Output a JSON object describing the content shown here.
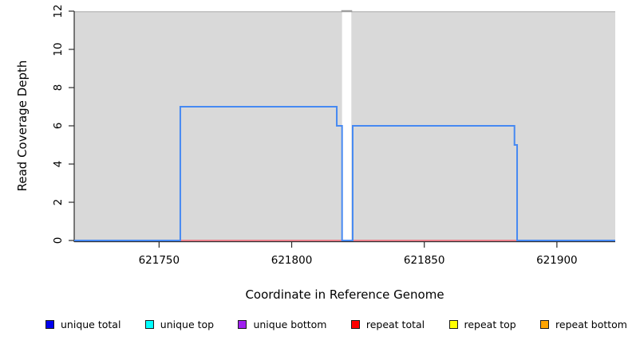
{
  "chart_data": {
    "type": "line",
    "subtype": "step-coverage",
    "title": "",
    "xlabel": "Coordinate in Reference Genome",
    "ylabel": "Read Coverage Depth",
    "xlim": [
      621718,
      621922
    ],
    "ylim": [
      0,
      12
    ],
    "x_ticks": [
      621750,
      621800,
      621850,
      621900
    ],
    "y_ticks": [
      0,
      2,
      4,
      6,
      8,
      10,
      12
    ],
    "grid": false,
    "legend_position": "bottom",
    "axis_color": "#2b2b2b",
    "region_fill": "#d9d9d9",
    "region_top_border": "#bfbfbf",
    "gap_top_border": "#9e9e9e",
    "regions": [
      {
        "x0": 621718,
        "x1": 621819
      },
      {
        "x0": 621822.5,
        "x1": 621922
      }
    ],
    "series": [
      {
        "name": "repeat total",
        "color": "#ef6272",
        "width": 1.5,
        "points": [
          [
            621718,
            0
          ],
          [
            621922,
            0
          ]
        ]
      },
      {
        "name": "unique total",
        "color": "#4689f2",
        "width": 2,
        "points": [
          [
            621718,
            0
          ],
          [
            621758,
            0
          ],
          [
            621758,
            7
          ],
          [
            621817,
            7
          ],
          [
            621817,
            6
          ],
          [
            621819,
            6
          ],
          [
            621819,
            0
          ],
          [
            621823,
            0
          ],
          [
            621823,
            6
          ],
          [
            621884,
            6
          ],
          [
            621884,
            5
          ],
          [
            621885,
            5
          ],
          [
            621885,
            0
          ],
          [
            621922,
            0
          ]
        ]
      }
    ],
    "legend": [
      {
        "label": "unique total",
        "color": "#0000ee"
      },
      {
        "label": "unique top",
        "color": "#00ffff"
      },
      {
        "label": "unique bottom",
        "color": "#a020f0"
      },
      {
        "label": "repeat total",
        "color": "#ff0000"
      },
      {
        "label": "repeat top",
        "color": "#ffff00"
      },
      {
        "label": "repeat bottom",
        "color": "#ffa500"
      }
    ]
  }
}
